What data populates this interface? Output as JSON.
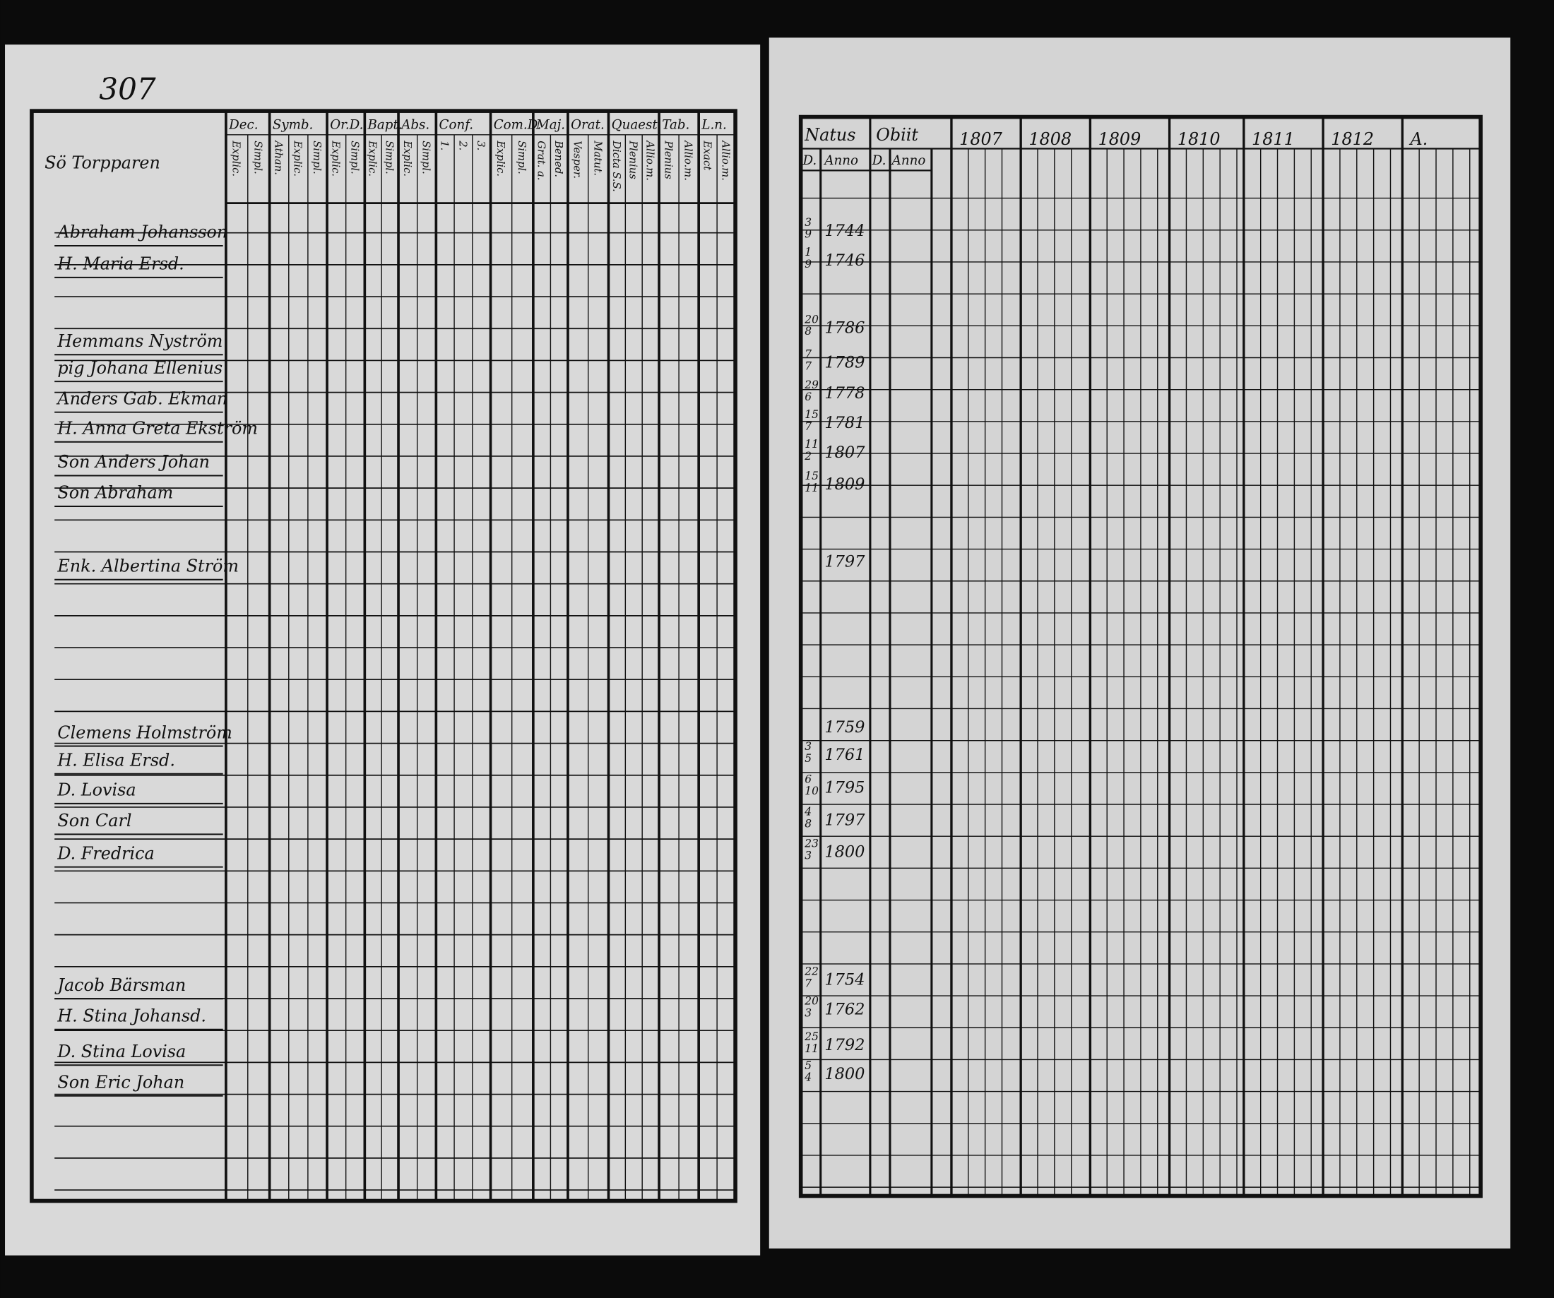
{
  "page_number": "307",
  "left_page": {
    "place": "Sö Torpparen",
    "columns": [
      {
        "title": "Dec.",
        "sub": [
          "Explic.",
          "Simpl."
        ]
      },
      {
        "title": "Symb.",
        "sub": [
          "Athan.",
          "Explic.",
          "Simpl."
        ]
      },
      {
        "title": "Or.D.",
        "sub": [
          "Explic.",
          "Simpl."
        ]
      },
      {
        "title": "Bapt.",
        "sub": [
          "Explic.",
          "Simpl."
        ]
      },
      {
        "title": "Abs.",
        "sub": [
          "Explic.",
          "Simpl."
        ]
      },
      {
        "title": "Conf.",
        "sub": [
          "1.",
          "2.",
          "3."
        ]
      },
      {
        "title": "Com.D.",
        "sub": [
          "Explic.",
          "Simpl."
        ]
      },
      {
        "title": "Maj.",
        "sub": [
          "Grat. a.",
          "Bened."
        ]
      },
      {
        "title": "Orat.",
        "sub": [
          "Vesper.",
          "Matut."
        ]
      },
      {
        "title": "Quaest.",
        "sub": [
          "Dicta S.S.",
          "Plenius",
          "Allio.m."
        ]
      },
      {
        "title": "Tab.",
        "sub": [
          "Plenius",
          "Allio.m."
        ]
      },
      {
        "title": "L.n.",
        "sub": [
          "Exact",
          "Allio.m."
        ]
      }
    ]
  },
  "right_page": {
    "natus": "Natus",
    "natus_sub": [
      "D.",
      "Anno"
    ],
    "obiit": "Obiit",
    "obiit_sub": [
      "D.",
      "Anno"
    ],
    "years": [
      "1807",
      "1808",
      "1809",
      "1810",
      "1811",
      "1812",
      "A."
    ]
  },
  "entries": [
    {
      "name": "Abraham Johansson",
      "day": "3",
      "month": "9",
      "year": "1744"
    },
    {
      "name": "H. Maria Ersd.",
      "day": "1",
      "month": "9",
      "year": "1746"
    },
    {
      "name": "Hemmans Nyström",
      "day": "20",
      "month": "8",
      "year": "1786"
    },
    {
      "name": "pig Johana Ellenius",
      "day": "7",
      "month": "7",
      "year": "1789"
    },
    {
      "name": "Anders Gab. Ekman",
      "day": "29",
      "month": "6",
      "year": "1778"
    },
    {
      "name": "H. Anna Greta Ekström",
      "day": "15",
      "month": "7",
      "year": "1781"
    },
    {
      "name": "Son Anders Johan",
      "day": "11",
      "month": "2",
      "year": "1807"
    },
    {
      "name": "Son Abraham",
      "day": "15",
      "month": "11",
      "year": "1809"
    },
    {
      "name": "Enk. Albertina Ström",
      "day": "",
      "month": "",
      "year": "1797"
    },
    {
      "name": "Clemens Holmström",
      "day": "",
      "month": "",
      "year": "1759"
    },
    {
      "name": "H. Elisa Ersd.",
      "day": "3",
      "month": "5",
      "year": "1761"
    },
    {
      "name": "D. Lovisa",
      "day": "6",
      "month": "10",
      "year": "1795"
    },
    {
      "name": "Son Carl",
      "day": "4",
      "month": "8",
      "year": "1797"
    },
    {
      "name": "D. Fredrica",
      "day": "23",
      "month": "3",
      "year": "1800"
    },
    {
      "name": "Jacob Bärsman",
      "day": "22",
      "month": "7",
      "year": "1754"
    },
    {
      "name": "H. Stina Johansd.",
      "day": "20",
      "month": "3",
      "year": "1762"
    },
    {
      "name": "D. Stina Lovisa",
      "day": "25",
      "month": "11",
      "year": "1792"
    },
    {
      "name": "Son Eric Johan",
      "day": "5",
      "month": "4",
      "year": "1800"
    }
  ]
}
